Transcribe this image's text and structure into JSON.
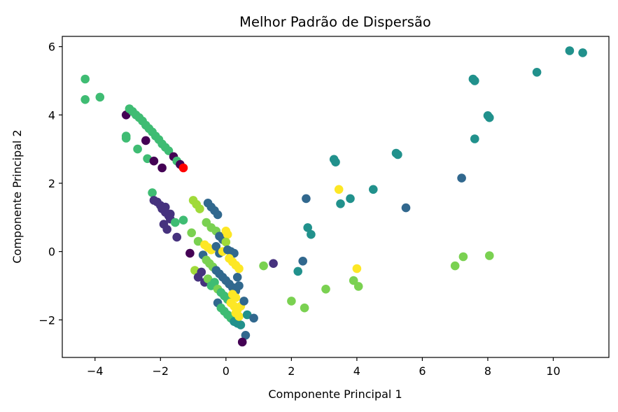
{
  "chart_data": {
    "type": "scatter",
    "title": "Melhor Padrão de Dispersão",
    "xlabel": "Componente Principal 1",
    "ylabel": "Componente Principal 2",
    "xlim": [
      -5,
      11.7
    ],
    "ylim": [
      -3.1,
      6.3
    ],
    "xticks": [
      -4,
      -2,
      0,
      2,
      4,
      6,
      8,
      10
    ],
    "yticks": [
      -2,
      0,
      2,
      4,
      6
    ],
    "xtick_labels": [
      "−4",
      "−2",
      "0",
      "2",
      "4",
      "6",
      "8",
      "10"
    ],
    "ytick_labels": [
      "−2",
      "0",
      "2",
      "4",
      "6"
    ],
    "grid": false,
    "colormap": "viridis",
    "highlight_color": "#ff0000",
    "points": [
      {
        "x": -4.3,
        "y": 5.05,
        "c": "#3fbc73"
      },
      {
        "x": -4.3,
        "y": 4.45,
        "c": "#3fbc73"
      },
      {
        "x": -3.85,
        "y": 4.52,
        "c": "#3fbc73"
      },
      {
        "x": -3.05,
        "y": 4.0,
        "c": "#440154"
      },
      {
        "x": -2.95,
        "y": 4.18,
        "c": "#3fbc73"
      },
      {
        "x": -2.85,
        "y": 4.1,
        "c": "#3fbc73"
      },
      {
        "x": -2.75,
        "y": 4.0,
        "c": "#3fbc73"
      },
      {
        "x": -2.65,
        "y": 3.92,
        "c": "#3fbc73"
      },
      {
        "x": -2.55,
        "y": 3.82,
        "c": "#3fbc73"
      },
      {
        "x": -2.45,
        "y": 3.7,
        "c": "#3fbc73"
      },
      {
        "x": -2.35,
        "y": 3.6,
        "c": "#3fbc73"
      },
      {
        "x": -2.25,
        "y": 3.5,
        "c": "#3fbc73"
      },
      {
        "x": -2.15,
        "y": 3.38,
        "c": "#3fbc73"
      },
      {
        "x": -2.05,
        "y": 3.28,
        "c": "#3fbc73"
      },
      {
        "x": -1.95,
        "y": 3.15,
        "c": "#3fbc73"
      },
      {
        "x": -1.85,
        "y": 3.05,
        "c": "#3fbc73"
      },
      {
        "x": -1.75,
        "y": 2.95,
        "c": "#3fbc73"
      },
      {
        "x": -1.6,
        "y": 2.78,
        "c": "#440154"
      },
      {
        "x": -1.5,
        "y": 2.65,
        "c": "#3fbc73"
      },
      {
        "x": -1.4,
        "y": 2.55,
        "c": "#440154"
      },
      {
        "x": -1.3,
        "y": 2.45,
        "c": "#ff0000"
      },
      {
        "x": -3.05,
        "y": 3.38,
        "c": "#3fbc73"
      },
      {
        "x": -3.05,
        "y": 3.32,
        "c": "#3fbc73"
      },
      {
        "x": -2.7,
        "y": 3.0,
        "c": "#3fbc73"
      },
      {
        "x": -2.45,
        "y": 3.25,
        "c": "#440154"
      },
      {
        "x": -2.4,
        "y": 2.72,
        "c": "#3fbc73"
      },
      {
        "x": -2.2,
        "y": 2.65,
        "c": "#440154"
      },
      {
        "x": -1.95,
        "y": 2.45,
        "c": "#440154"
      },
      {
        "x": -2.25,
        "y": 1.72,
        "c": "#3fbc73"
      },
      {
        "x": -2.2,
        "y": 1.5,
        "c": "#46327e"
      },
      {
        "x": -2.1,
        "y": 1.45,
        "c": "#46327e"
      },
      {
        "x": -2.0,
        "y": 1.35,
        "c": "#46327e"
      },
      {
        "x": -1.95,
        "y": 1.25,
        "c": "#46327e"
      },
      {
        "x": -1.85,
        "y": 1.15,
        "c": "#46327e"
      },
      {
        "x": -1.75,
        "y": 1.05,
        "c": "#46327e"
      },
      {
        "x": -1.7,
        "y": 0.95,
        "c": "#46327e"
      },
      {
        "x": -1.9,
        "y": 0.8,
        "c": "#46327e"
      },
      {
        "x": -1.8,
        "y": 0.65,
        "c": "#46327e"
      },
      {
        "x": -1.55,
        "y": 0.85,
        "c": "#3fbc73"
      },
      {
        "x": -1.3,
        "y": 0.92,
        "c": "#3fbc73"
      },
      {
        "x": -1.05,
        "y": 0.55,
        "c": "#7ad151"
      },
      {
        "x": -1.5,
        "y": 0.42,
        "c": "#46327e"
      },
      {
        "x": -1.7,
        "y": 1.1,
        "c": "#46327e"
      },
      {
        "x": -1.85,
        "y": 1.3,
        "c": "#46327e"
      },
      {
        "x": -1.0,
        "y": 1.5,
        "c": "#a0da39"
      },
      {
        "x": -0.9,
        "y": 1.38,
        "c": "#a0da39"
      },
      {
        "x": -0.8,
        "y": 1.25,
        "c": "#a0da39"
      },
      {
        "x": -0.55,
        "y": 1.42,
        "c": "#31688e"
      },
      {
        "x": -0.45,
        "y": 1.3,
        "c": "#31688e"
      },
      {
        "x": -0.35,
        "y": 1.2,
        "c": "#31688e"
      },
      {
        "x": -0.25,
        "y": 1.08,
        "c": "#31688e"
      },
      {
        "x": -0.6,
        "y": 0.85,
        "c": "#7ad151"
      },
      {
        "x": -0.45,
        "y": 0.7,
        "c": "#7ad151"
      },
      {
        "x": -0.3,
        "y": 0.6,
        "c": "#7ad151"
      },
      {
        "x": -0.2,
        "y": 0.45,
        "c": "#31688e"
      },
      {
        "x": -0.1,
        "y": 0.35,
        "c": "#31688e"
      },
      {
        "x": 0.0,
        "y": 0.6,
        "c": "#fde725"
      },
      {
        "x": 0.05,
        "y": 0.5,
        "c": "#fde725"
      },
      {
        "x": 0.0,
        "y": 0.28,
        "c": "#a0da39"
      },
      {
        "x": -0.85,
        "y": 0.3,
        "c": "#7ad151"
      },
      {
        "x": -1.1,
        "y": -0.05,
        "c": "#440154"
      },
      {
        "x": -0.65,
        "y": 0.2,
        "c": "#fde725"
      },
      {
        "x": -0.55,
        "y": 0.12,
        "c": "#fde725"
      },
      {
        "x": -0.45,
        "y": 0.05,
        "c": "#fde725"
      },
      {
        "x": -0.3,
        "y": 0.15,
        "c": "#31688e"
      },
      {
        "x": -0.2,
        "y": -0.05,
        "c": "#31688e"
      },
      {
        "x": -0.1,
        "y": 0.0,
        "c": "#fde725"
      },
      {
        "x": 0.05,
        "y": 0.05,
        "c": "#31688e"
      },
      {
        "x": 0.15,
        "y": 0.0,
        "c": "#31688e"
      },
      {
        "x": 0.25,
        "y": -0.05,
        "c": "#31688e"
      },
      {
        "x": -0.7,
        "y": -0.1,
        "c": "#31688e"
      },
      {
        "x": -0.6,
        "y": -0.25,
        "c": "#7ad151"
      },
      {
        "x": -0.5,
        "y": -0.35,
        "c": "#7ad151"
      },
      {
        "x": -0.4,
        "y": -0.45,
        "c": "#7ad151"
      },
      {
        "x": -0.3,
        "y": -0.55,
        "c": "#31688e"
      },
      {
        "x": -0.2,
        "y": -0.65,
        "c": "#31688e"
      },
      {
        "x": -0.1,
        "y": -0.75,
        "c": "#31688e"
      },
      {
        "x": 0.0,
        "y": -0.85,
        "c": "#31688e"
      },
      {
        "x": 0.1,
        "y": -0.95,
        "c": "#31688e"
      },
      {
        "x": 0.2,
        "y": -1.05,
        "c": "#31688e"
      },
      {
        "x": 0.3,
        "y": -1.15,
        "c": "#31688e"
      },
      {
        "x": 0.4,
        "y": -1.0,
        "c": "#31688e"
      },
      {
        "x": 0.35,
        "y": -0.75,
        "c": "#31688e"
      },
      {
        "x": 0.3,
        "y": -0.4,
        "c": "#fde725"
      },
      {
        "x": 0.4,
        "y": -0.5,
        "c": "#fde725"
      },
      {
        "x": 0.2,
        "y": -0.3,
        "c": "#fde725"
      },
      {
        "x": 0.1,
        "y": -0.2,
        "c": "#fde725"
      },
      {
        "x": -0.95,
        "y": -0.55,
        "c": "#a0da39"
      },
      {
        "x": -0.85,
        "y": -0.75,
        "c": "#46327e"
      },
      {
        "x": -0.75,
        "y": -0.6,
        "c": "#46327e"
      },
      {
        "x": -0.65,
        "y": -0.9,
        "c": "#46327e"
      },
      {
        "x": -0.55,
        "y": -0.8,
        "c": "#7ad151"
      },
      {
        "x": -0.45,
        "y": -1.0,
        "c": "#3fbc73"
      },
      {
        "x": -0.35,
        "y": -0.9,
        "c": "#3fbc73"
      },
      {
        "x": -0.25,
        "y": -1.1,
        "c": "#7ad151"
      },
      {
        "x": -0.15,
        "y": -1.2,
        "c": "#3fbc73"
      },
      {
        "x": -0.05,
        "y": -1.3,
        "c": "#3fbc73"
      },
      {
        "x": 0.05,
        "y": -1.4,
        "c": "#3fbc73"
      },
      {
        "x": 0.15,
        "y": -1.5,
        "c": "#fde725"
      },
      {
        "x": 0.25,
        "y": -1.6,
        "c": "#fde725"
      },
      {
        "x": 0.35,
        "y": -1.7,
        "c": "#fde725"
      },
      {
        "x": 0.45,
        "y": -1.6,
        "c": "#fde725"
      },
      {
        "x": 0.3,
        "y": -1.35,
        "c": "#fde725"
      },
      {
        "x": 0.2,
        "y": -1.25,
        "c": "#fde725"
      },
      {
        "x": 0.55,
        "y": -1.45,
        "c": "#31688e"
      },
      {
        "x": -0.25,
        "y": -1.5,
        "c": "#31688e"
      },
      {
        "x": -0.15,
        "y": -1.65,
        "c": "#3fbc73"
      },
      {
        "x": -0.05,
        "y": -1.75,
        "c": "#3fbc73"
      },
      {
        "x": 0.05,
        "y": -1.85,
        "c": "#3fbc73"
      },
      {
        "x": 0.15,
        "y": -1.95,
        "c": "#3fbc73"
      },
      {
        "x": 0.25,
        "y": -2.05,
        "c": "#21918c"
      },
      {
        "x": 0.35,
        "y": -2.1,
        "c": "#21918c"
      },
      {
        "x": 0.45,
        "y": -2.15,
        "c": "#21918c"
      },
      {
        "x": 0.4,
        "y": -1.9,
        "c": "#fde725"
      },
      {
        "x": 0.3,
        "y": -1.8,
        "c": "#fde725"
      },
      {
        "x": 0.65,
        "y": -1.85,
        "c": "#21918c"
      },
      {
        "x": 0.85,
        "y": -1.95,
        "c": "#31688e"
      },
      {
        "x": 0.6,
        "y": -2.45,
        "c": "#31688e"
      },
      {
        "x": 0.5,
        "y": -2.65,
        "c": "#440154"
      },
      {
        "x": 1.15,
        "y": -0.42,
        "c": "#7ad151"
      },
      {
        "x": 1.45,
        "y": -0.35,
        "c": "#46327e"
      },
      {
        "x": 2.35,
        "y": -0.28,
        "c": "#31688e"
      },
      {
        "x": 2.2,
        "y": -0.58,
        "c": "#21918c"
      },
      {
        "x": 2.45,
        "y": 1.55,
        "c": "#31688e"
      },
      {
        "x": 2.5,
        "y": 0.7,
        "c": "#21918c"
      },
      {
        "x": 2.6,
        "y": 0.5,
        "c": "#21918c"
      },
      {
        "x": 2.0,
        "y": -1.45,
        "c": "#7ad151"
      },
      {
        "x": 2.4,
        "y": -1.65,
        "c": "#7ad151"
      },
      {
        "x": 3.05,
        "y": -1.1,
        "c": "#7ad151"
      },
      {
        "x": 3.3,
        "y": 2.7,
        "c": "#21918c"
      },
      {
        "x": 3.35,
        "y": 2.62,
        "c": "#21918c"
      },
      {
        "x": 3.45,
        "y": 1.82,
        "c": "#fde725"
      },
      {
        "x": 3.5,
        "y": 1.4,
        "c": "#21918c"
      },
      {
        "x": 3.8,
        "y": 1.55,
        "c": "#21918c"
      },
      {
        "x": 3.9,
        "y": -0.85,
        "c": "#7ad151"
      },
      {
        "x": 4.0,
        "y": -0.5,
        "c": "#fde725"
      },
      {
        "x": 4.05,
        "y": -1.02,
        "c": "#7ad151"
      },
      {
        "x": 4.5,
        "y": 1.82,
        "c": "#21918c"
      },
      {
        "x": 5.2,
        "y": 2.88,
        "c": "#21918c"
      },
      {
        "x": 5.25,
        "y": 2.84,
        "c": "#21918c"
      },
      {
        "x": 5.5,
        "y": 1.28,
        "c": "#31688e"
      },
      {
        "x": 7.0,
        "y": -0.42,
        "c": "#7ad151"
      },
      {
        "x": 7.25,
        "y": -0.15,
        "c": "#7ad151"
      },
      {
        "x": 7.2,
        "y": 2.15,
        "c": "#31688e"
      },
      {
        "x": 7.55,
        "y": 5.05,
        "c": "#21918c"
      },
      {
        "x": 7.6,
        "y": 5.0,
        "c": "#21918c"
      },
      {
        "x": 7.6,
        "y": 3.3,
        "c": "#21918c"
      },
      {
        "x": 8.0,
        "y": 3.98,
        "c": "#21918c"
      },
      {
        "x": 8.05,
        "y": 3.92,
        "c": "#21918c"
      },
      {
        "x": 8.05,
        "y": -0.12,
        "c": "#7ad151"
      },
      {
        "x": 9.5,
        "y": 5.25,
        "c": "#21918c"
      },
      {
        "x": 10.5,
        "y": 5.88,
        "c": "#21918c"
      },
      {
        "x": 10.9,
        "y": 5.82,
        "c": "#21918c"
      }
    ]
  }
}
